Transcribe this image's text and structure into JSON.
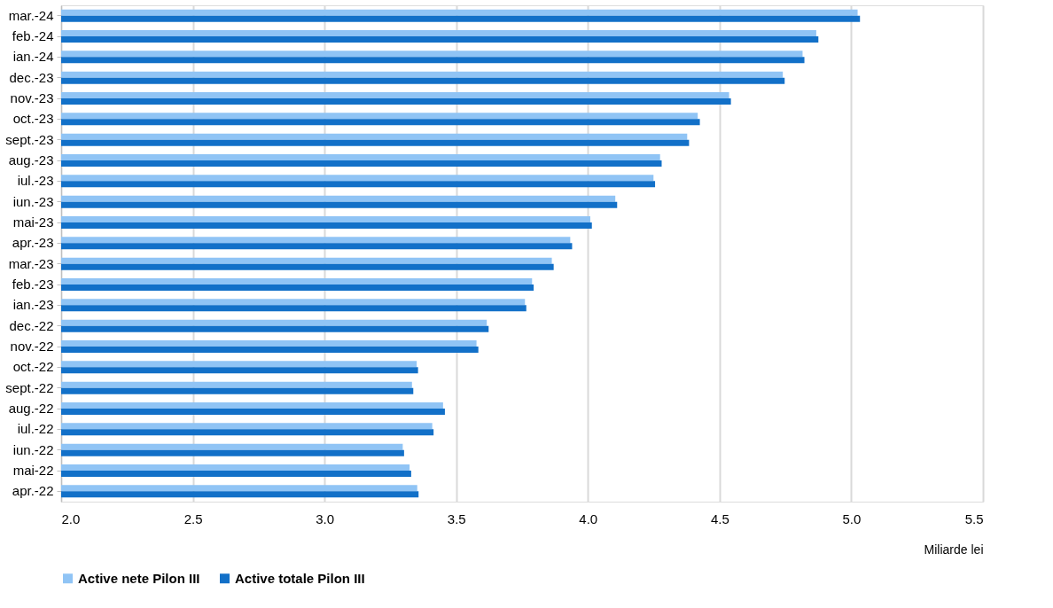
{
  "chart_data": {
    "type": "bar",
    "orientation": "horizontal",
    "categories": [
      "mar.-24",
      "feb.-24",
      "ian.-24",
      "dec.-23",
      "nov.-23",
      "oct.-23",
      "sept.-23",
      "aug.-23",
      "iul.-23",
      "iun.-23",
      "mai-23",
      "apr.-23",
      "mar.-23",
      "feb.-23",
      "ian.-23",
      "dec.-22",
      "nov.-22",
      "oct.-22",
      "sept.-22",
      "aug.-22",
      "iul.-22",
      "iun.-22",
      "mai-22",
      "apr.-22"
    ],
    "series": [
      {
        "name": "Active nete Pilon III",
        "color": "#90c4f5",
        "values": [
          5.024,
          4.867,
          4.815,
          4.74,
          4.536,
          4.417,
          4.377,
          4.274,
          4.249,
          4.104,
          4.009,
          3.933,
          3.863,
          3.788,
          3.761,
          3.616,
          3.577,
          3.35,
          3.332,
          3.45,
          3.409,
          3.297,
          3.323,
          3.352
        ]
      },
      {
        "name": "Active totale Pilon III",
        "color": "#1270c8",
        "values": [
          5.033,
          4.875,
          4.822,
          4.747,
          4.543,
          4.425,
          4.384,
          4.28,
          4.255,
          4.111,
          4.015,
          3.94,
          3.87,
          3.794,
          3.766,
          3.623,
          3.584,
          3.355,
          3.337,
          3.457,
          3.414,
          3.302,
          3.329,
          3.357
        ]
      }
    ],
    "xlim": [
      2.0,
      5.5
    ],
    "xticks": [
      {
        "value": 2,
        "label": "2.0"
      },
      {
        "value": 2.5,
        "label": "2.5"
      },
      {
        "value": 3,
        "label": "3.0"
      },
      {
        "value": 3.5,
        "label": "3.5"
      },
      {
        "value": 4,
        "label": "4.0"
      },
      {
        "value": 4.5,
        "label": "4.5"
      },
      {
        "value": 5,
        "label": "5.0"
      },
      {
        "value": 5.5,
        "label": "5.5"
      }
    ],
    "xlabel": "Miliarde lei",
    "grid": "x",
    "legend": "bottom"
  }
}
